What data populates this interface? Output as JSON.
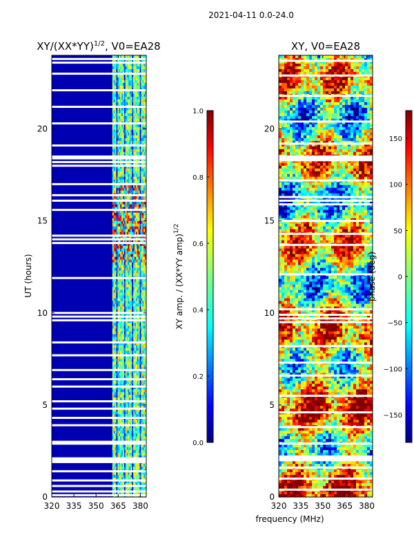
{
  "figure": {
    "suptitle": "2021-04-11 0.0-24.0",
    "xlabel": "frequency (MHz)"
  },
  "chart_data": [
    {
      "type": "heatmap",
      "title_main": "XY/(XX*YY)",
      "title_sup": "1/2",
      "title_rest": ", V0=EA28",
      "ylabel": "UT (hours)",
      "xlim": [
        320,
        384
      ],
      "ylim": [
        0,
        24
      ],
      "xticks": [
        320,
        335,
        350,
        365,
        380
      ],
      "yticks": [
        0,
        5,
        10,
        15,
        20
      ],
      "colorbar": {
        "label_main": "XY amp. / (XX*YY amp)",
        "label_sup": "1/2",
        "range": [
          0.0,
          1.0
        ],
        "ticks": [
          "0.0",
          "0.2",
          "0.4",
          "0.6",
          "0.8",
          "1.0"
        ],
        "tick_values": [
          0.0,
          0.2,
          0.4,
          0.6,
          0.8,
          1.0
        ],
        "colormap": "jet"
      },
      "flagged_ut_hours": [
        23.8,
        23.6,
        23.0,
        22.1,
        21.2,
        20.3,
        19.1,
        18.5,
        18.4,
        18.2,
        18.0,
        17.0,
        16.4,
        16.1,
        15.6,
        14.2,
        14.0,
        13.8,
        11.9,
        10.0,
        9.8,
        9.6,
        8.4,
        7.7,
        6.9,
        6.4,
        6.0,
        5.2,
        4.8,
        4.3,
        3.9,
        3.0,
        2.9,
        2.1,
        2.0,
        1.9,
        1.4,
        0.9,
        0.6,
        0.3,
        0.1
      ],
      "band": {
        "quiet_value": 0.05,
        "active_range_mhz": [
          361,
          384
        ],
        "active_value": 0.6
      }
    },
    {
      "type": "heatmap",
      "title_main": "XY, V0=EA28",
      "ylabel": "",
      "xlim": [
        320,
        384
      ],
      "ylim": [
        0,
        24
      ],
      "xticks": [
        320,
        335,
        350,
        365,
        380
      ],
      "yticks": [
        0,
        5,
        10,
        15,
        20
      ],
      "colorbar": {
        "label_main": "phase (deg)",
        "range": [
          -180,
          180
        ],
        "ticks": [
          "150",
          "100",
          "50",
          "0",
          "−50",
          "−100",
          "−150"
        ],
        "tick_values": [
          150,
          100,
          50,
          0,
          -50,
          -100,
          -150
        ],
        "colormap": "jet"
      },
      "flagged_ut_hours": [
        23.7,
        22.9,
        21.8,
        20.4,
        19.2,
        18.5,
        18.4,
        18.3,
        17.2,
        16.3,
        16.1,
        15.9,
        15.0,
        14.3,
        13.7,
        12.1,
        10.2,
        9.9,
        9.7,
        9.5,
        8.2,
        7.3,
        6.6,
        5.5,
        4.6,
        3.8,
        2.9,
        2.2,
        2.1,
        2.0,
        1.6,
        1.0,
        0.4
      ]
    }
  ]
}
